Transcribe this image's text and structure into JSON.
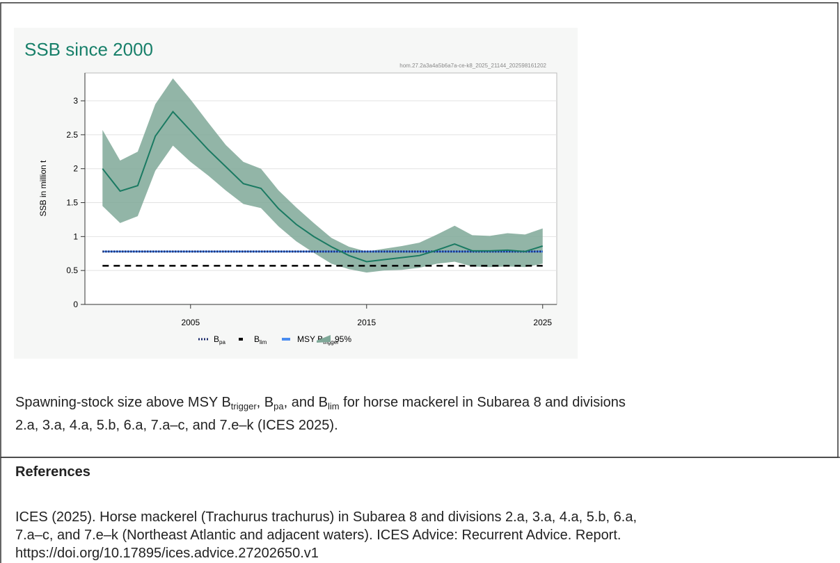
{
  "chart_data": {
    "type": "line",
    "title": "SSB since 2000",
    "subtitle": "hom.27.2a3a4a5b6a7a-ce-k8_2025_21144_202598161202",
    "y_label": "SSB in million t",
    "x": [
      2000,
      2001,
      2002,
      2003,
      2004,
      2005,
      2006,
      2007,
      2008,
      2009,
      2010,
      2011,
      2012,
      2013,
      2014,
      2015,
      2016,
      2017,
      2018,
      2019,
      2020,
      2021,
      2022,
      2023,
      2024,
      2025
    ],
    "values": [
      2.0,
      1.67,
      1.75,
      2.48,
      2.84,
      2.56,
      2.28,
      2.03,
      1.78,
      1.71,
      1.41,
      1.18,
      1.0,
      0.85,
      0.72,
      0.63,
      0.66,
      0.69,
      0.72,
      0.8,
      0.89,
      0.79,
      0.79,
      0.8,
      0.78,
      0.86
    ],
    "color": "#1a7a62",
    "band": {
      "name": "95%",
      "color": "#7fa898",
      "upper": [
        2.57,
        2.12,
        2.25,
        2.95,
        3.33,
        3.02,
        2.68,
        2.35,
        2.1,
        2.0,
        1.68,
        1.43,
        1.2,
        0.98,
        0.85,
        0.78,
        0.82,
        0.86,
        0.91,
        1.03,
        1.16,
        1.02,
        1.01,
        1.05,
        1.03,
        1.12
      ],
      "lower": [
        1.45,
        1.2,
        1.3,
        1.97,
        2.34,
        2.1,
        1.9,
        1.68,
        1.48,
        1.42,
        1.15,
        0.93,
        0.76,
        0.6,
        0.52,
        0.47,
        0.5,
        0.51,
        0.54,
        0.6,
        0.63,
        0.56,
        0.55,
        0.56,
        0.55,
        0.6
      ]
    },
    "reference_lines": [
      {
        "name": "B",
        "subscript": "pa",
        "value": 0.78,
        "color": "#1a2a6a",
        "style": "dotted"
      },
      {
        "name": "B",
        "subscript": "lim",
        "value": 0.57,
        "color": "#000000",
        "style": "dashed"
      },
      {
        "name": "MSY B",
        "subscript": "trigger",
        "value": 0.78,
        "color": "#4a8cf0",
        "style": "solid"
      }
    ],
    "xlim": [
      1999,
      2025.8
    ],
    "ylim": [
      0,
      3.41
    ],
    "xticks": [
      2005,
      2015,
      2025
    ],
    "yticks": [
      0,
      0.5,
      1,
      1.5,
      2,
      2.5,
      3
    ],
    "grid": true
  },
  "caption": {
    "lines": [
      [
        "Spawning-stock size above MSY B",
        "trigger",
        ", B",
        "pa",
        ", and B",
        "lim",
        " for horse mackerel in Subarea 8 and divisions"
      ],
      [
        "2.a, 3.a, 4.a, 5.b, 6.a, 7.a–c, and 7.e–k (ICES 2025)."
      ]
    ]
  },
  "references": {
    "heading": "References",
    "lines": [
      "ICES (2025). Horse mackerel (Trachurus trachurus) in Subarea 8 and divisions 2.a, 3.a, 4.a, 5.b, 6.a,",
      "7.a–c, and 7.e–k (Northeast Atlantic and adjacent waters). ICES Advice: Recurrent Advice. Report.",
      "https://doi.org/10.17895/ices.advice.27202650.v1"
    ]
  }
}
